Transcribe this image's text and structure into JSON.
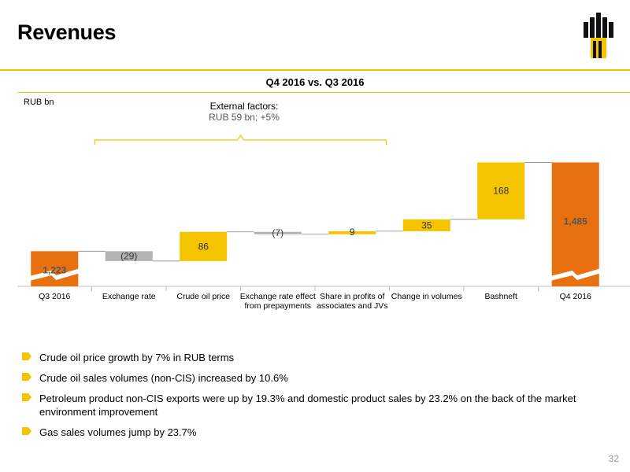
{
  "title": "Revenues",
  "subtitle": "Q4 2016 vs. Q3 2016",
  "unit_label": "RUB bn",
  "external_factors": {
    "title": "External factors:",
    "value": "RUB 59 bn; +5%"
  },
  "colors": {
    "accent": "#f5c400",
    "total": "#e8700f",
    "positive": "#f5c400",
    "negative": "#b3b3b3",
    "connector": "#888888"
  },
  "chart_data": {
    "type": "bar",
    "subtype": "waterfall",
    "categories": [
      "Q3 2016",
      "Exchange rate",
      "Crude oil price",
      "Exchange rate effect from prepayments",
      "Share in profits of associates and JVs",
      "Change in volumes",
      "Bashneft",
      "Q4 2016"
    ],
    "category_lines": [
      [
        "Q3 2016"
      ],
      [
        "Exchange rate"
      ],
      [
        "Crude oil price"
      ],
      [
        "Exchange rate effect",
        "from prepayments"
      ],
      [
        "Share in profits of",
        "associates and JVs"
      ],
      [
        "Change in volumes"
      ],
      [
        "Bashneft"
      ],
      [
        "Q4 2016"
      ]
    ],
    "values": [
      1223,
      -29,
      86,
      -7,
      9,
      35,
      168,
      1485
    ],
    "labels": [
      "1,223",
      "(29)",
      "86",
      "(7)",
      "9",
      "35",
      "168",
      "1,485"
    ],
    "bar_kinds": [
      "total",
      "delta",
      "delta",
      "delta",
      "delta",
      "delta",
      "delta",
      "total"
    ],
    "axis_break": true,
    "ylim": [
      1175,
      1500
    ]
  },
  "bullets": [
    "Crude oil price growth by 7% in RUB terms",
    "Crude oil sales volumes (non-CIS) increased by 10.6%",
    "Petroleum product non-CIS exports were up by 19.3% and domestic product sales by 23.2% on the back of the market environment improvement",
    "Gas sales volumes jump by 23.7%"
  ],
  "page_number": "32"
}
